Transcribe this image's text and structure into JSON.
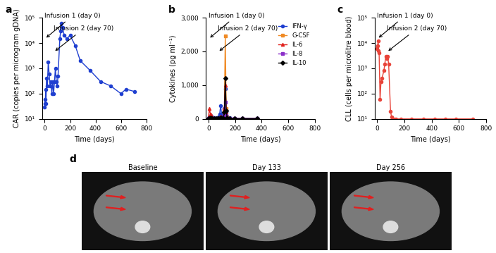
{
  "chart_data": [
    {
      "type": "line",
      "annotations": [
        {
          "text": "a"
        },
        {
          "text": "Infusion 1 (day 0)",
          "x": 0
        },
        {
          "text": "Infusion 2 (day 70)",
          "x": 70
        }
      ],
      "x_label": "Time (days)",
      "y_label": "CAR (copies per microgram gDNA)",
      "x": [
        0,
        2,
        5,
        7,
        10,
        14,
        21,
        28,
        35,
        42,
        49,
        56,
        63,
        70,
        77,
        84,
        91,
        98,
        105,
        119,
        126,
        133,
        140,
        154,
        175,
        200,
        240,
        280,
        360,
        440,
        520,
        600,
        640,
        710
      ],
      "values": [
        30,
        60,
        40,
        150,
        40,
        400,
        200,
        1800,
        600,
        200,
        300,
        100,
        300,
        100,
        300,
        1000,
        300,
        200,
        500,
        15000,
        30000,
        60000,
        40000,
        20000,
        15000,
        20000,
        8000,
        2000,
        800,
        300,
        200,
        100,
        150,
        120
      ],
      "color": "#1f3fd0",
      "marker": "circle",
      "log": "y",
      "xlim": [
        -20,
        800
      ],
      "xticks": [
        0,
        200,
        400,
        600,
        800
      ],
      "ylim": [
        10,
        100000
      ],
      "yticks": [
        {
          "value": 10,
          "label": "10¹"
        },
        {
          "value": 100,
          "label": "10²"
        },
        {
          "value": 1000,
          "label": "10³"
        },
        {
          "value": 10000,
          "label": "10⁴"
        },
        {
          "value": 100000,
          "label": "10⁵"
        }
      ]
    },
    {
      "type": "line",
      "annotations": [
        {
          "text": "b"
        },
        {
          "text": "Infusion 1 (day 0)",
          "x": 0
        },
        {
          "text": "Infusion 2 (day 70)",
          "x": 70
        }
      ],
      "x_label": "Time (days)",
      "y_label": "Cytokines (pg ml⁻¹)",
      "x": [
        0,
        7,
        14,
        21,
        28,
        42,
        56,
        70,
        77,
        84,
        91,
        98,
        112,
        119,
        126,
        133,
        140,
        161,
        196,
        252,
        364
      ],
      "series": [
        {
          "name": "IFN-γ",
          "color": "#1f3fd0",
          "marker": "circle",
          "values": [
            20,
            60,
            100,
            80,
            40,
            30,
            20,
            20,
            50,
            150,
            400,
            150,
            100,
            300,
            900,
            200,
            80,
            30,
            20,
            20,
            20
          ]
        },
        {
          "name": "G-CSF",
          "color": "#f08a24",
          "marker": "square",
          "values": [
            0,
            0,
            0,
            0,
            0,
            0,
            0,
            0,
            0,
            0,
            0,
            0,
            0,
            200,
            2450,
            300,
            50,
            0,
            0,
            0,
            0
          ]
        },
        {
          "name": "IL-6",
          "color": "#e0201b",
          "marker": "triangle",
          "values": [
            50,
            300,
            150,
            100,
            50,
            20,
            10,
            10,
            20,
            50,
            80,
            60,
            40,
            300,
            1000,
            200,
            50,
            20,
            10,
            10,
            10
          ]
        },
        {
          "name": "IL-8",
          "color": "#8b2fc9",
          "marker": "square",
          "values": [
            10,
            20,
            20,
            10,
            10,
            10,
            10,
            10,
            10,
            20,
            30,
            20,
            20,
            100,
            500,
            100,
            20,
            10,
            10,
            10,
            10
          ]
        },
        {
          "name": "IL-10",
          "color": "#000000",
          "marker": "diamond",
          "values": [
            10,
            20,
            30,
            20,
            10,
            10,
            10,
            10,
            10,
            20,
            40,
            30,
            20,
            200,
            1200,
            250,
            30,
            10,
            10,
            10,
            10
          ]
        }
      ],
      "legend": "upper right",
      "xlim": [
        -20,
        800
      ],
      "xticks": [
        0,
        200,
        400,
        600,
        800
      ],
      "ylim": [
        0,
        3000
      ],
      "yticks": [
        0,
        {
          "value": 1000,
          "label": "1,000"
        },
        {
          "value": 2000,
          "label": "2,000"
        },
        {
          "value": 3000,
          "label": "3,000"
        }
      ]
    },
    {
      "type": "line",
      "annotations": [
        {
          "text": "c"
        },
        {
          "text": "Infusion 1 (day 0)",
          "x": 0
        },
        {
          "text": "Infusion 2 (day 70)",
          "x": 70
        }
      ],
      "x_label": "Time (days)",
      "y_label": "CLL (cells per microlitre blood)",
      "x": [
        0,
        3,
        7,
        10,
        14,
        21,
        28,
        35,
        49,
        56,
        63,
        70,
        77,
        84,
        98,
        105,
        112,
        126,
        140,
        175,
        250,
        340,
        420,
        500,
        580,
        700
      ],
      "values": [
        6000,
        8000,
        12000,
        5000,
        4000,
        60,
        300,
        400,
        800,
        1500,
        3000,
        2500,
        3000,
        1500,
        20,
        12,
        10,
        10,
        10,
        10,
        10,
        10,
        10,
        10,
        10,
        10
      ],
      "color": "#e8443a",
      "marker": "circle",
      "log": "y",
      "xlim": [
        -20,
        800
      ],
      "xticks": [
        0,
        200,
        400,
        600,
        800
      ],
      "ylim": [
        10,
        100000
      ],
      "yticks": [
        {
          "value": 10,
          "label": "10¹"
        },
        {
          "value": 100,
          "label": "10²"
        },
        {
          "value": 1000,
          "label": "10³"
        },
        {
          "value": 10000,
          "label": "10⁴"
        },
        {
          "value": 100000,
          "label": "10⁵"
        }
      ]
    }
  ],
  "images": {
    "label": "d",
    "titles": [
      "Baseline",
      "Day 133",
      "Day 256"
    ]
  }
}
